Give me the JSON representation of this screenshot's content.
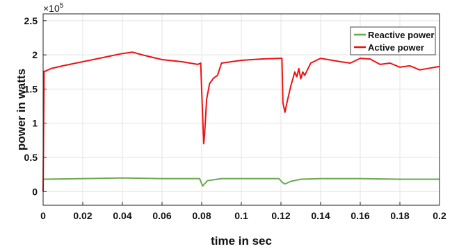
{
  "chart_data": {
    "type": "line",
    "title": "",
    "xlabel": "time in sec",
    "ylabel": "power in watts",
    "xlim": [
      0,
      0.2
    ],
    "ylim": [
      -0.2,
      2.6
    ],
    "y_multiplier_label": "×10",
    "y_multiplier_exponent": "5",
    "grid": true,
    "legend_position": "top-right",
    "xticks": [
      "0",
      "0.02",
      "0.04",
      "0.06",
      "0.08",
      "0.1",
      "0.12",
      "0.14",
      "0.16",
      "0.18",
      "0.2"
    ],
    "yticks": [
      "0",
      "0.5",
      "1",
      "1.5",
      "2",
      "2.5"
    ],
    "xtick_values": [
      0,
      0.02,
      0.04,
      0.06,
      0.08,
      0.1,
      0.12,
      0.14,
      0.16,
      0.18,
      0.2
    ],
    "ytick_values": [
      0,
      0.5,
      1,
      1.5,
      2,
      2.5
    ],
    "series": [
      {
        "name": "Reactive power",
        "color": "#6aa84f",
        "x": [
          0,
          0.02,
          0.04,
          0.06,
          0.07,
          0.079,
          0.0805,
          0.081,
          0.083,
          0.09,
          0.1,
          0.119,
          0.1205,
          0.122,
          0.125,
          0.13,
          0.14,
          0.16,
          0.18,
          0.2
        ],
        "y": [
          0.18,
          0.19,
          0.2,
          0.19,
          0.19,
          0.19,
          0.08,
          0.1,
          0.16,
          0.19,
          0.19,
          0.19,
          0.14,
          0.11,
          0.15,
          0.18,
          0.19,
          0.19,
          0.18,
          0.18
        ]
      },
      {
        "name": "Active power",
        "color": "#ee1111",
        "x": [
          0,
          0.0005,
          0.001,
          0.004,
          0.01,
          0.02,
          0.03,
          0.04,
          0.045,
          0.05,
          0.06,
          0.07,
          0.078,
          0.0795,
          0.0805,
          0.081,
          0.0815,
          0.0825,
          0.084,
          0.086,
          0.088,
          0.09,
          0.1,
          0.11,
          0.1195,
          0.1205,
          0.121,
          0.122,
          0.123,
          0.125,
          0.127,
          0.128,
          0.129,
          0.13,
          0.131,
          0.132,
          0.135,
          0.14,
          0.15,
          0.155,
          0.16,
          0.165,
          0.17,
          0.175,
          0.18,
          0.185,
          0.19,
          0.2
        ],
        "y": [
          0.0,
          1.76,
          1.76,
          1.8,
          1.84,
          1.9,
          1.96,
          2.02,
          2.04,
          2.0,
          1.93,
          1.9,
          1.86,
          1.88,
          1.1,
          0.7,
          0.85,
          1.35,
          1.58,
          1.66,
          1.7,
          1.88,
          1.92,
          1.94,
          1.95,
          1.95,
          1.3,
          1.16,
          1.3,
          1.55,
          1.75,
          1.68,
          1.8,
          1.65,
          1.75,
          1.7,
          1.88,
          1.95,
          1.9,
          1.88,
          1.95,
          1.94,
          1.86,
          1.88,
          1.82,
          1.84,
          1.78,
          1.83
        ]
      }
    ]
  }
}
